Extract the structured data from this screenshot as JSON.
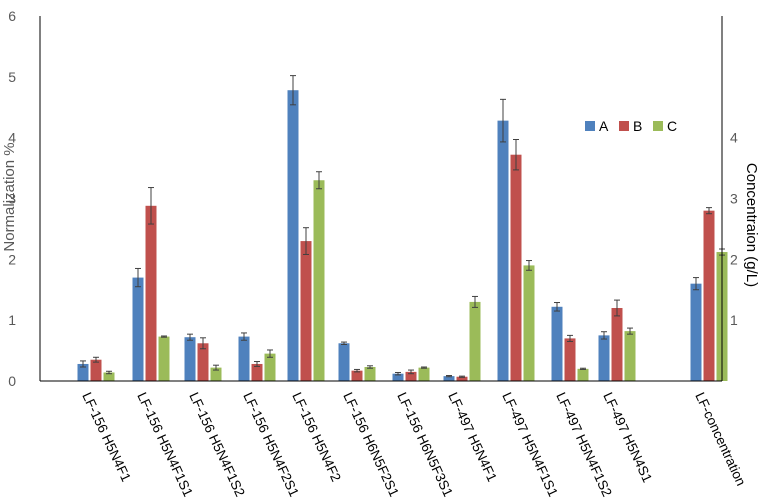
{
  "chart_data": {
    "type": "bar",
    "title": "",
    "ylabel": "Normalization %",
    "y2label": "Concentraion (g/L)",
    "ylim": [
      0,
      6
    ],
    "y_ticks": [
      0,
      1,
      2,
      3,
      4,
      5,
      6
    ],
    "y2lim": [
      0,
      6
    ],
    "y2_ticks": [
      1,
      2,
      3,
      4
    ],
    "grid": false,
    "legend": "top-right",
    "colors": {
      "A": "#4f81bd",
      "B": "#c0504d",
      "C": "#9bbb59"
    },
    "categories": [
      "LF-156 H5N4F1",
      "LF-156 H5N4F1S1",
      "LF-156 H5N4F1S2",
      "LF-156 H5N4F2S1",
      "LF-156 H5N4F2",
      "LF-156 H6N5F2S1",
      "LF-156 H6N5F3S1",
      "LF-497 H5N4F1",
      "LF-497 H5N4F1S1",
      "LF-497 H5N4F1S2",
      "LF-497 H5N4S1",
      "LF-concentration"
    ],
    "series": [
      {
        "name": "A",
        "values": [
          0.28,
          1.7,
          0.72,
          0.73,
          4.78,
          0.62,
          0.12,
          0.08,
          4.28,
          1.22,
          0.75,
          1.6
        ],
        "errors": [
          0.05,
          0.15,
          0.05,
          0.06,
          0.24,
          0.02,
          0.02,
          0.01,
          0.35,
          0.07,
          0.06,
          0.1
        ]
      },
      {
        "name": "B",
        "values": [
          0.35,
          2.88,
          0.62,
          0.28,
          2.3,
          0.17,
          0.15,
          0.07,
          3.72,
          0.7,
          1.2,
          2.8
        ],
        "errors": [
          0.04,
          0.3,
          0.09,
          0.04,
          0.22,
          0.02,
          0.03,
          0.01,
          0.25,
          0.05,
          0.13,
          0.05
        ]
      },
      {
        "name": "C",
        "values": [
          0.14,
          0.73,
          0.22,
          0.45,
          3.3,
          0.23,
          0.22,
          1.3,
          1.9,
          0.2,
          0.82,
          2.12
        ],
        "errors": [
          0.02,
          0.01,
          0.04,
          0.06,
          0.14,
          0.02,
          0.01,
          0.09,
          0.08,
          0.01,
          0.05,
          0.05
        ]
      }
    ]
  }
}
